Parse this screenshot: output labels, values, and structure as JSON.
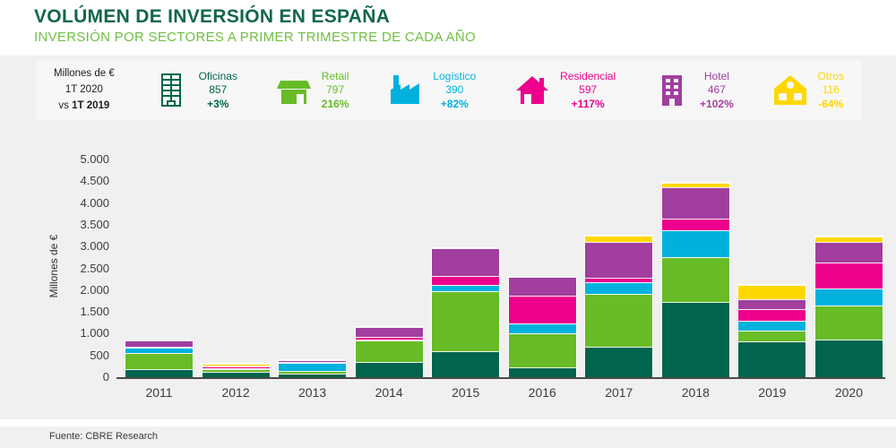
{
  "header": {
    "title": "VOLÚMEN DE INVERSIÓN EN ESPAÑA",
    "subtitle": "INVERSIÓN POR SECTORES A PRIMER TRIMESTRE DE CADA AÑO"
  },
  "legend": {
    "info": {
      "line1": "Millones de €",
      "line2": "1T 2020",
      "vs": "vs",
      "vs_period": "1T 2019"
    },
    "sectors": [
      {
        "name": "Oficinas",
        "value": "857",
        "change": "+3%",
        "color": "#00654c",
        "icon": "office-building"
      },
      {
        "name": "Retail",
        "value": "797",
        "change": "216%",
        "color": "#68bc27",
        "icon": "retail-store"
      },
      {
        "name": "Logístico",
        "value": "390",
        "change": "+82%",
        "color": "#00b1de",
        "icon": "factory"
      },
      {
        "name": "Residencial",
        "value": "597",
        "change": "+117%",
        "color": "#ec008c",
        "icon": "house"
      },
      {
        "name": "Hotel",
        "value": "467",
        "change": "+102%",
        "color": "#a13e9e",
        "icon": "hotel-building"
      },
      {
        "name": "Otros",
        "value": "116",
        "change": "-64%",
        "color": "#ffd800",
        "icon": "house-alt"
      }
    ]
  },
  "chart_data": {
    "type": "bar",
    "stacked": true,
    "title": "Volúmen de inversión en España, por sectores, 1T de cada año",
    "xlabel": "",
    "ylabel": "Millones de €",
    "ylim": [
      0,
      5000
    ],
    "ytick_step": 500,
    "ytick_labels": [
      "0",
      "500",
      "1.000",
      "1.500",
      "2.000",
      "2.500",
      "3.000",
      "3.500",
      "4.000",
      "4.500",
      "5.000"
    ],
    "grid": false,
    "legend_position": "top",
    "categories": [
      "2011",
      "2012",
      "2013",
      "2014",
      "2015",
      "2016",
      "2017",
      "2018",
      "2019",
      "2020"
    ],
    "series": [
      {
        "key": "oficinas",
        "name": "Oficinas",
        "color": "#00654c",
        "values": [
          185,
          120,
          85,
          345,
          600,
          230,
          690,
          1720,
          830,
          857
        ]
      },
      {
        "key": "retail",
        "name": "Retail",
        "color": "#68bc27",
        "values": [
          370,
          60,
          65,
          490,
          1380,
          770,
          1220,
          1040,
          250,
          797
        ]
      },
      {
        "key": "logistico",
        "name": "Logístico",
        "color": "#00b1de",
        "values": [
          125,
          15,
          170,
          25,
          135,
          225,
          270,
          625,
          215,
          390
        ]
      },
      {
        "key": "residencial",
        "name": "Residencial",
        "color": "#ec008c",
        "values": [
          25,
          45,
          30,
          70,
          205,
          640,
          110,
          255,
          275,
          597
        ]
      },
      {
        "key": "hotel",
        "name": "Hotel",
        "color": "#a13e9e",
        "values": [
          130,
          10,
          40,
          230,
          650,
          440,
          820,
          725,
          230,
          467
        ]
      },
      {
        "key": "otros",
        "name": "Otros",
        "color": "#ffd800",
        "values": [
          0,
          40,
          0,
          0,
          0,
          0,
          135,
          95,
          320,
          116
        ]
      }
    ],
    "totals": [
      835,
      290,
      390,
      1160,
      2970,
      2305,
      3245,
      4460,
      2120,
      3224
    ]
  },
  "footer": {
    "source": "Fuente: CBRE Research"
  }
}
